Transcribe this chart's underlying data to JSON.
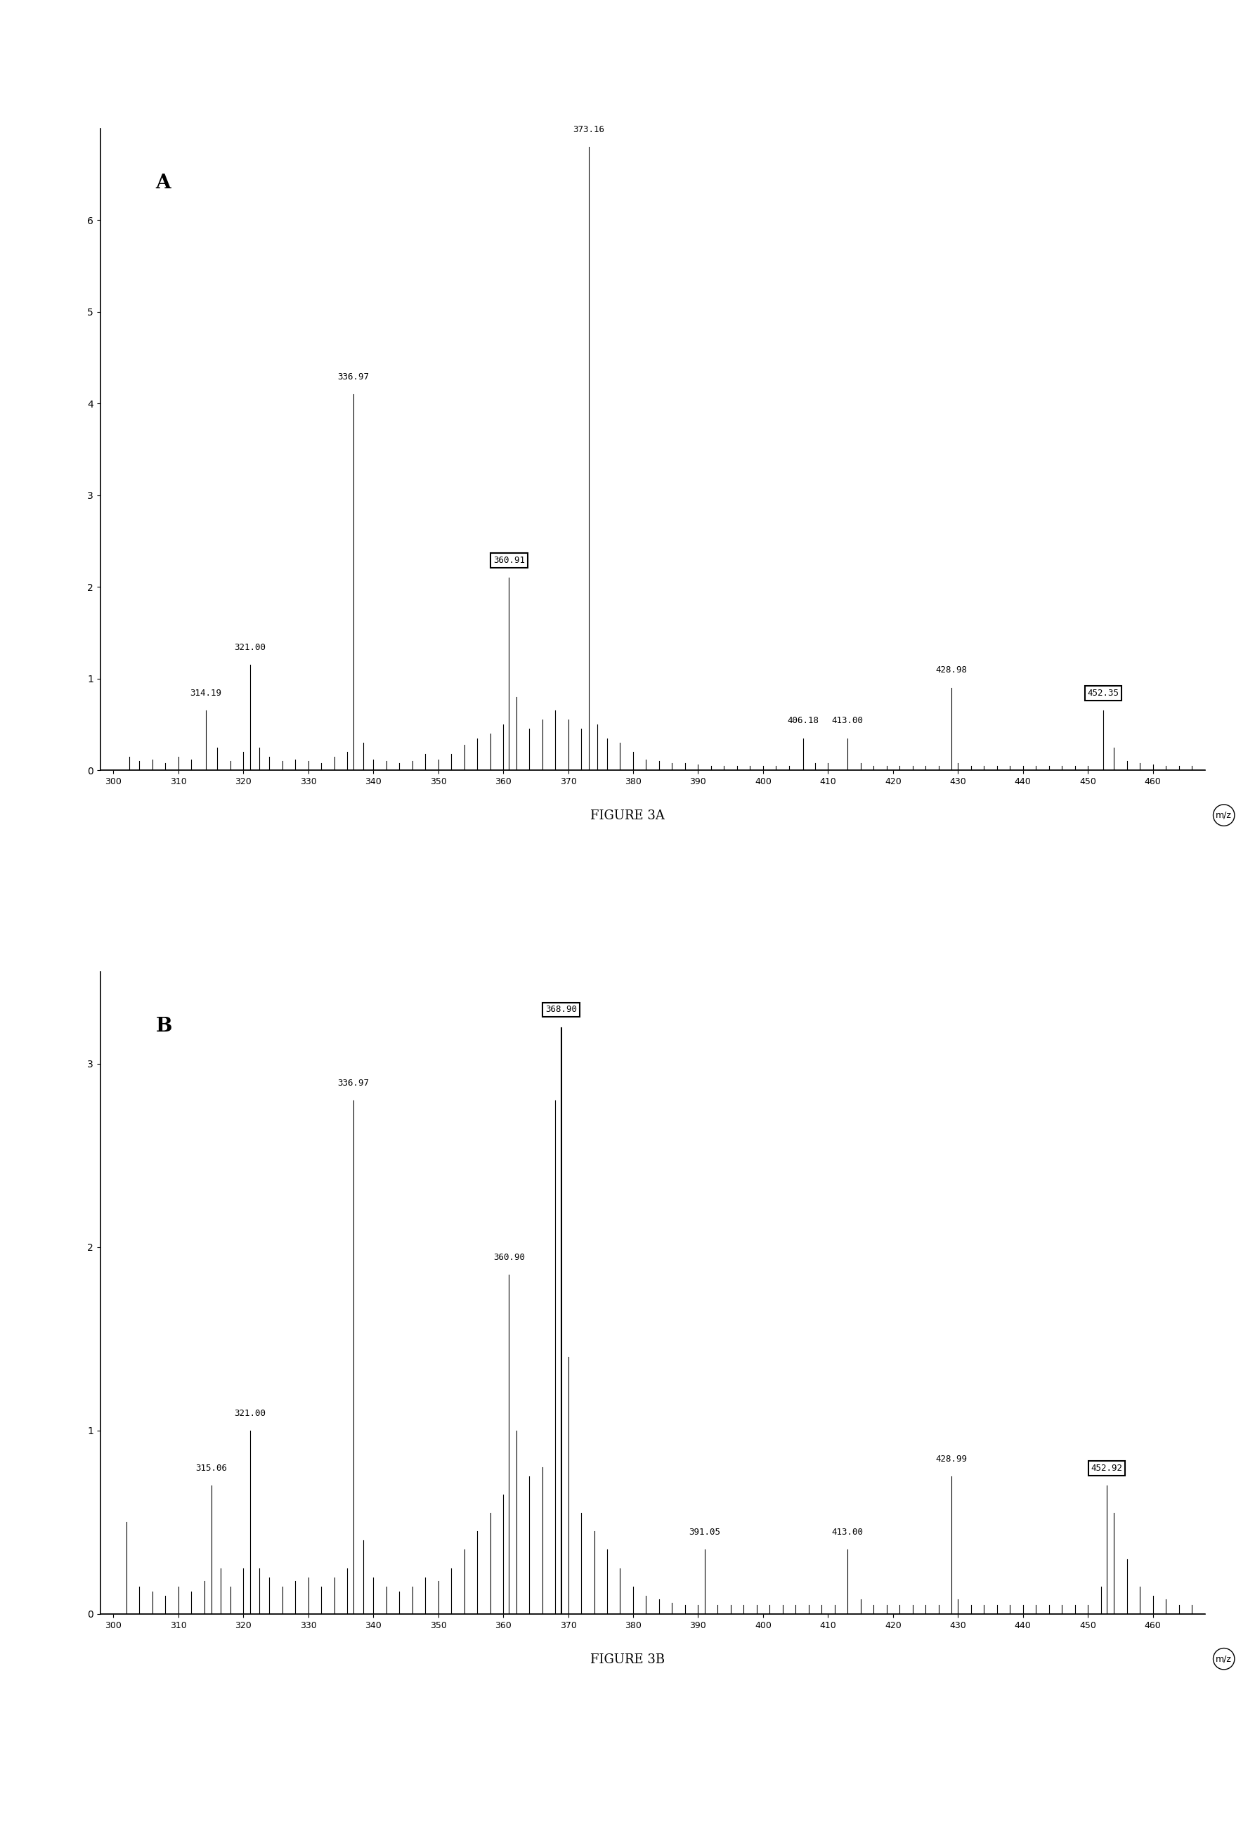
{
  "panel_A": {
    "label": "A",
    "xlim": [
      298,
      468
    ],
    "ylim": [
      0,
      7.0
    ],
    "yticks": [
      0,
      1,
      2,
      3,
      4,
      5,
      6
    ],
    "xticks": [
      300,
      310,
      320,
      330,
      340,
      350,
      360,
      370,
      380,
      390,
      400,
      410,
      420,
      430,
      440,
      450,
      460
    ],
    "xlabel": "m/z",
    "peaks": [
      {
        "mz": 302.5,
        "intensity": 0.15
      },
      {
        "mz": 304.0,
        "intensity": 0.1
      },
      {
        "mz": 306.0,
        "intensity": 0.12
      },
      {
        "mz": 308.0,
        "intensity": 0.08
      },
      {
        "mz": 310.0,
        "intensity": 0.15
      },
      {
        "mz": 312.0,
        "intensity": 0.12
      },
      {
        "mz": 314.19,
        "intensity": 0.65,
        "label": "314.19"
      },
      {
        "mz": 316.0,
        "intensity": 0.25
      },
      {
        "mz": 318.0,
        "intensity": 0.1
      },
      {
        "mz": 320.0,
        "intensity": 0.2
      },
      {
        "mz": 321.0,
        "intensity": 1.15,
        "label": "321.00"
      },
      {
        "mz": 322.5,
        "intensity": 0.25
      },
      {
        "mz": 324.0,
        "intensity": 0.15
      },
      {
        "mz": 326.0,
        "intensity": 0.1
      },
      {
        "mz": 328.0,
        "intensity": 0.12
      },
      {
        "mz": 330.0,
        "intensity": 0.1
      },
      {
        "mz": 332.0,
        "intensity": 0.08
      },
      {
        "mz": 334.0,
        "intensity": 0.15
      },
      {
        "mz": 336.0,
        "intensity": 0.2
      },
      {
        "mz": 336.97,
        "intensity": 4.1,
        "label": "336.97"
      },
      {
        "mz": 338.5,
        "intensity": 0.3
      },
      {
        "mz": 340.0,
        "intensity": 0.12
      },
      {
        "mz": 342.0,
        "intensity": 0.1
      },
      {
        "mz": 344.0,
        "intensity": 0.08
      },
      {
        "mz": 346.0,
        "intensity": 0.1
      },
      {
        "mz": 348.0,
        "intensity": 0.18
      },
      {
        "mz": 350.0,
        "intensity": 0.12
      },
      {
        "mz": 352.0,
        "intensity": 0.18
      },
      {
        "mz": 354.0,
        "intensity": 0.28
      },
      {
        "mz": 356.0,
        "intensity": 0.35
      },
      {
        "mz": 358.0,
        "intensity": 0.4
      },
      {
        "mz": 360.0,
        "intensity": 0.5
      },
      {
        "mz": 360.91,
        "intensity": 2.1,
        "label": "360.91",
        "boxed": true
      },
      {
        "mz": 362.0,
        "intensity": 0.8
      },
      {
        "mz": 364.0,
        "intensity": 0.45
      },
      {
        "mz": 366.0,
        "intensity": 0.55
      },
      {
        "mz": 368.0,
        "intensity": 0.65
      },
      {
        "mz": 370.0,
        "intensity": 0.55
      },
      {
        "mz": 372.0,
        "intensity": 0.45
      },
      {
        "mz": 373.16,
        "intensity": 6.8,
        "label": "373.16"
      },
      {
        "mz": 374.5,
        "intensity": 0.5
      },
      {
        "mz": 376.0,
        "intensity": 0.35
      },
      {
        "mz": 378.0,
        "intensity": 0.3
      },
      {
        "mz": 380.0,
        "intensity": 0.2
      },
      {
        "mz": 382.0,
        "intensity": 0.12
      },
      {
        "mz": 384.0,
        "intensity": 0.1
      },
      {
        "mz": 386.0,
        "intensity": 0.08
      },
      {
        "mz": 388.0,
        "intensity": 0.08
      },
      {
        "mz": 390.0,
        "intensity": 0.06
      },
      {
        "mz": 392.0,
        "intensity": 0.05
      },
      {
        "mz": 394.0,
        "intensity": 0.05
      },
      {
        "mz": 396.0,
        "intensity": 0.05
      },
      {
        "mz": 398.0,
        "intensity": 0.05
      },
      {
        "mz": 400.0,
        "intensity": 0.05
      },
      {
        "mz": 402.0,
        "intensity": 0.05
      },
      {
        "mz": 404.0,
        "intensity": 0.05
      },
      {
        "mz": 406.18,
        "intensity": 0.35,
        "label": "406.18"
      },
      {
        "mz": 408.0,
        "intensity": 0.08
      },
      {
        "mz": 410.0,
        "intensity": 0.08
      },
      {
        "mz": 413.0,
        "intensity": 0.35,
        "label": "413.00"
      },
      {
        "mz": 415.0,
        "intensity": 0.08
      },
      {
        "mz": 417.0,
        "intensity": 0.05
      },
      {
        "mz": 419.0,
        "intensity": 0.05
      },
      {
        "mz": 421.0,
        "intensity": 0.05
      },
      {
        "mz": 423.0,
        "intensity": 0.05
      },
      {
        "mz": 425.0,
        "intensity": 0.05
      },
      {
        "mz": 427.0,
        "intensity": 0.05
      },
      {
        "mz": 428.98,
        "intensity": 0.9,
        "label": "428.98"
      },
      {
        "mz": 430.0,
        "intensity": 0.08
      },
      {
        "mz": 432.0,
        "intensity": 0.05
      },
      {
        "mz": 434.0,
        "intensity": 0.05
      },
      {
        "mz": 436.0,
        "intensity": 0.05
      },
      {
        "mz": 438.0,
        "intensity": 0.05
      },
      {
        "mz": 440.0,
        "intensity": 0.05
      },
      {
        "mz": 442.0,
        "intensity": 0.05
      },
      {
        "mz": 444.0,
        "intensity": 0.05
      },
      {
        "mz": 446.0,
        "intensity": 0.05
      },
      {
        "mz": 448.0,
        "intensity": 0.05
      },
      {
        "mz": 450.0,
        "intensity": 0.05
      },
      {
        "mz": 452.35,
        "intensity": 0.65,
        "label": "452.35",
        "boxed": true
      },
      {
        "mz": 454.0,
        "intensity": 0.25
      },
      {
        "mz": 456.0,
        "intensity": 0.1
      },
      {
        "mz": 458.0,
        "intensity": 0.08
      },
      {
        "mz": 460.0,
        "intensity": 0.06
      },
      {
        "mz": 462.0,
        "intensity": 0.05
      },
      {
        "mz": 464.0,
        "intensity": 0.05
      },
      {
        "mz": 466.0,
        "intensity": 0.05
      }
    ],
    "figure_label": "FIGURE 3A"
  },
  "panel_B": {
    "label": "B",
    "xlim": [
      298,
      468
    ],
    "ylim": [
      0,
      3.5
    ],
    "yticks": [
      0,
      1,
      2,
      3
    ],
    "xticks": [
      300,
      310,
      320,
      330,
      340,
      350,
      360,
      370,
      380,
      390,
      400,
      410,
      420,
      430,
      440,
      450,
      460
    ],
    "xlabel": "m/z",
    "peaks": [
      {
        "mz": 302.0,
        "intensity": 0.5
      },
      {
        "mz": 304.0,
        "intensity": 0.15
      },
      {
        "mz": 306.0,
        "intensity": 0.12
      },
      {
        "mz": 308.0,
        "intensity": 0.1
      },
      {
        "mz": 310.0,
        "intensity": 0.15
      },
      {
        "mz": 312.0,
        "intensity": 0.12
      },
      {
        "mz": 314.0,
        "intensity": 0.18
      },
      {
        "mz": 315.06,
        "intensity": 0.7,
        "label": "315.06"
      },
      {
        "mz": 316.5,
        "intensity": 0.25
      },
      {
        "mz": 318.0,
        "intensity": 0.15
      },
      {
        "mz": 320.0,
        "intensity": 0.25
      },
      {
        "mz": 321.0,
        "intensity": 1.0,
        "label": "321.00"
      },
      {
        "mz": 322.5,
        "intensity": 0.25
      },
      {
        "mz": 324.0,
        "intensity": 0.2
      },
      {
        "mz": 326.0,
        "intensity": 0.15
      },
      {
        "mz": 328.0,
        "intensity": 0.18
      },
      {
        "mz": 330.0,
        "intensity": 0.2
      },
      {
        "mz": 332.0,
        "intensity": 0.15
      },
      {
        "mz": 334.0,
        "intensity": 0.2
      },
      {
        "mz": 336.0,
        "intensity": 0.25
      },
      {
        "mz": 336.97,
        "intensity": 2.8,
        "label": "336.97"
      },
      {
        "mz": 338.5,
        "intensity": 0.4
      },
      {
        "mz": 340.0,
        "intensity": 0.2
      },
      {
        "mz": 342.0,
        "intensity": 0.15
      },
      {
        "mz": 344.0,
        "intensity": 0.12
      },
      {
        "mz": 346.0,
        "intensity": 0.15
      },
      {
        "mz": 348.0,
        "intensity": 0.2
      },
      {
        "mz": 350.0,
        "intensity": 0.18
      },
      {
        "mz": 352.0,
        "intensity": 0.25
      },
      {
        "mz": 354.0,
        "intensity": 0.35
      },
      {
        "mz": 356.0,
        "intensity": 0.45
      },
      {
        "mz": 358.0,
        "intensity": 0.55
      },
      {
        "mz": 360.0,
        "intensity": 0.65
      },
      {
        "mz": 360.9,
        "intensity": 1.85,
        "label": "360.90"
      },
      {
        "mz": 362.0,
        "intensity": 1.0
      },
      {
        "mz": 364.0,
        "intensity": 0.75
      },
      {
        "mz": 366.0,
        "intensity": 0.8
      },
      {
        "mz": 368.0,
        "intensity": 2.8
      },
      {
        "mz": 369.0,
        "intensity": 3.2
      },
      {
        "mz": 368.9,
        "intensity": 3.2,
        "label": "368.90",
        "boxed": true
      },
      {
        "mz": 370.0,
        "intensity": 1.4
      },
      {
        "mz": 372.0,
        "intensity": 0.55
      },
      {
        "mz": 374.0,
        "intensity": 0.45
      },
      {
        "mz": 376.0,
        "intensity": 0.35
      },
      {
        "mz": 378.0,
        "intensity": 0.25
      },
      {
        "mz": 380.0,
        "intensity": 0.15
      },
      {
        "mz": 382.0,
        "intensity": 0.1
      },
      {
        "mz": 384.0,
        "intensity": 0.08
      },
      {
        "mz": 386.0,
        "intensity": 0.06
      },
      {
        "mz": 388.0,
        "intensity": 0.05
      },
      {
        "mz": 390.0,
        "intensity": 0.05
      },
      {
        "mz": 391.05,
        "intensity": 0.35,
        "label": "391.05"
      },
      {
        "mz": 393.0,
        "intensity": 0.05
      },
      {
        "mz": 395.0,
        "intensity": 0.05
      },
      {
        "mz": 397.0,
        "intensity": 0.05
      },
      {
        "mz": 399.0,
        "intensity": 0.05
      },
      {
        "mz": 401.0,
        "intensity": 0.05
      },
      {
        "mz": 403.0,
        "intensity": 0.05
      },
      {
        "mz": 405.0,
        "intensity": 0.05
      },
      {
        "mz": 407.0,
        "intensity": 0.05
      },
      {
        "mz": 409.0,
        "intensity": 0.05
      },
      {
        "mz": 411.0,
        "intensity": 0.05
      },
      {
        "mz": 413.0,
        "intensity": 0.35,
        "label": "413.00"
      },
      {
        "mz": 415.0,
        "intensity": 0.08
      },
      {
        "mz": 417.0,
        "intensity": 0.05
      },
      {
        "mz": 419.0,
        "intensity": 0.05
      },
      {
        "mz": 421.0,
        "intensity": 0.05
      },
      {
        "mz": 423.0,
        "intensity": 0.05
      },
      {
        "mz": 425.0,
        "intensity": 0.05
      },
      {
        "mz": 427.0,
        "intensity": 0.05
      },
      {
        "mz": 428.99,
        "intensity": 0.75,
        "label": "428.99"
      },
      {
        "mz": 430.0,
        "intensity": 0.08
      },
      {
        "mz": 432.0,
        "intensity": 0.05
      },
      {
        "mz": 434.0,
        "intensity": 0.05
      },
      {
        "mz": 436.0,
        "intensity": 0.05
      },
      {
        "mz": 438.0,
        "intensity": 0.05
      },
      {
        "mz": 440.0,
        "intensity": 0.05
      },
      {
        "mz": 442.0,
        "intensity": 0.05
      },
      {
        "mz": 444.0,
        "intensity": 0.05
      },
      {
        "mz": 446.0,
        "intensity": 0.05
      },
      {
        "mz": 448.0,
        "intensity": 0.05
      },
      {
        "mz": 450.0,
        "intensity": 0.05
      },
      {
        "mz": 452.0,
        "intensity": 0.15
      },
      {
        "mz": 452.92,
        "intensity": 0.7,
        "label": "452.92",
        "boxed": true
      },
      {
        "mz": 454.0,
        "intensity": 0.55
      },
      {
        "mz": 456.0,
        "intensity": 0.3
      },
      {
        "mz": 458.0,
        "intensity": 0.15
      },
      {
        "mz": 460.0,
        "intensity": 0.1
      },
      {
        "mz": 462.0,
        "intensity": 0.08
      },
      {
        "mz": 464.0,
        "intensity": 0.05
      },
      {
        "mz": 466.0,
        "intensity": 0.05
      }
    ],
    "figure_label": "FIGURE 3B"
  }
}
